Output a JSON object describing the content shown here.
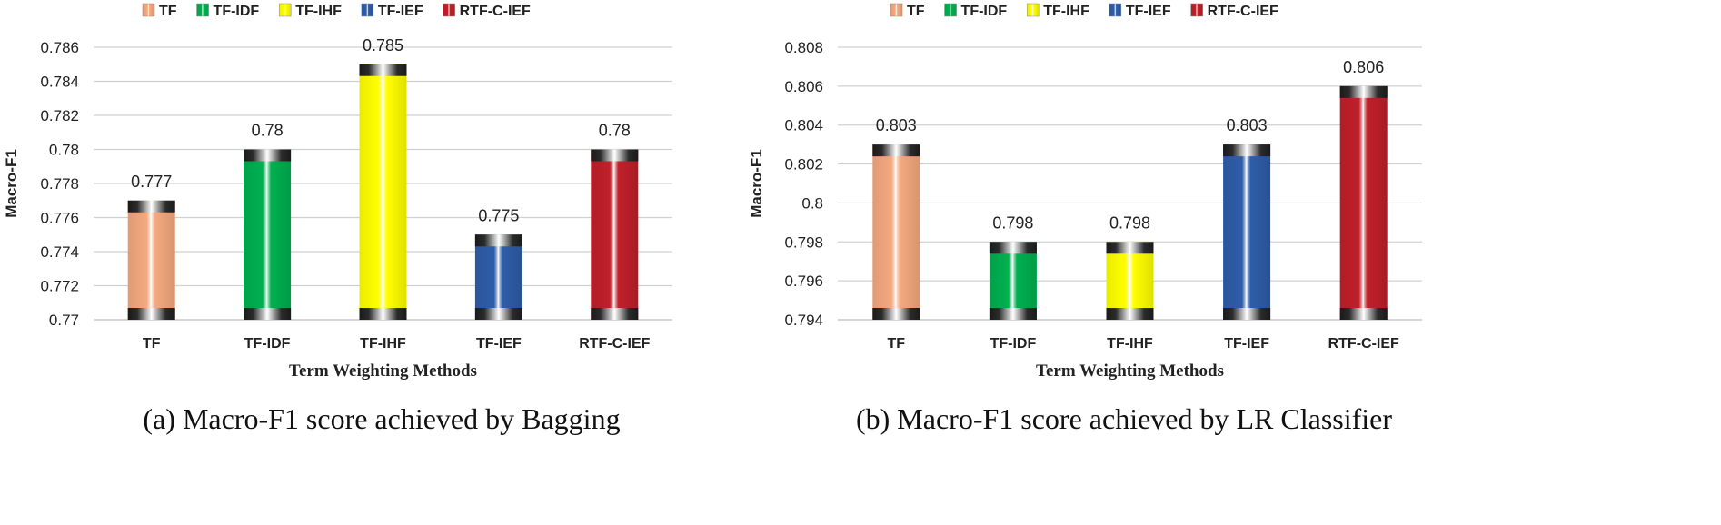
{
  "legend": [
    {
      "name": "TF",
      "color": "#F4A97F"
    },
    {
      "name": "TF-IDF",
      "color": "#00B050"
    },
    {
      "name": "TF-IHF",
      "color": "#FFFF00"
    },
    {
      "name": "TF-IEF",
      "color": "#2E5DA8"
    },
    {
      "name": "RTF-C-IEF",
      "color": "#C0202A"
    }
  ],
  "chart_data": [
    {
      "type": "bar",
      "title": "",
      "caption": "(a) Macro-F1 score achieved by Bagging",
      "xlabel": "Term Weighting Methods",
      "ylabel": "Macro-F1",
      "categories": [
        "TF",
        "TF-IDF",
        "TF-IHF",
        "TF-IEF",
        "RTF-C-IEF"
      ],
      "values": [
        0.777,
        0.78,
        0.785,
        0.775,
        0.78
      ],
      "value_labels": [
        "0.777",
        "0.78",
        "0.785",
        "0.775",
        "0.78"
      ],
      "ylim": [
        0.77,
        0.786
      ],
      "yticks": [
        0.77,
        0.772,
        0.774,
        0.776,
        0.778,
        0.78,
        0.782,
        0.784,
        0.786
      ],
      "ytick_labels": [
        "0.77",
        "0.772",
        "0.774",
        "0.776",
        "0.778",
        "0.78",
        "0.782",
        "0.784",
        "0.786"
      ],
      "grid": true
    },
    {
      "type": "bar",
      "title": "",
      "caption": "(b) Macro-F1 score achieved by LR Classifier",
      "xlabel": "Term Weighting Methods",
      "ylabel": "Macro-F1",
      "categories": [
        "TF",
        "TF-IDF",
        "TF-IHF",
        "TF-IEF",
        "RTF-C-IEF"
      ],
      "values": [
        0.803,
        0.798,
        0.798,
        0.803,
        0.806
      ],
      "value_labels": [
        "0.803",
        "0.798",
        "0.798",
        "0.803",
        "0.806"
      ],
      "ylim": [
        0.794,
        0.808
      ],
      "yticks": [
        0.794,
        0.796,
        0.798,
        0.8,
        0.802,
        0.804,
        0.806,
        0.808
      ],
      "ytick_labels": [
        "0.794",
        "0.796",
        "0.798",
        "0.8",
        "0.802",
        "0.804",
        "0.806",
        "0.808"
      ],
      "grid": true
    }
  ]
}
